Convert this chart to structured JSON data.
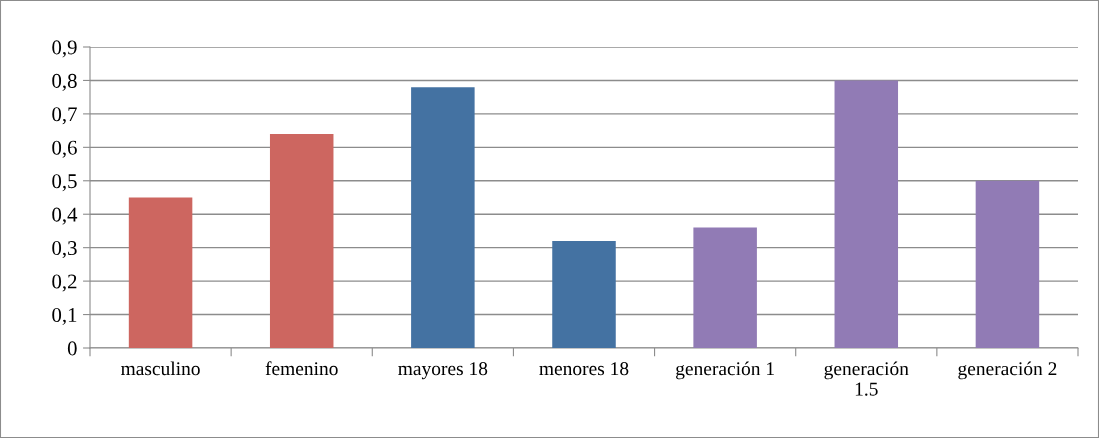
{
  "chart_data": {
    "type": "bar",
    "categories": [
      "masculino",
      "femenino",
      "mayores 18",
      "menores 18",
      "generación 1",
      "generación 1.5",
      "generación 2"
    ],
    "values": [
      0.45,
      0.64,
      0.78,
      0.32,
      0.36,
      0.8,
      0.5
    ],
    "colors": [
      "#cd6660",
      "#cd6660",
      "#4472a2",
      "#4472a2",
      "#917bb5",
      "#917bb5",
      "#917bb5"
    ],
    "ylim": [
      0,
      0.9
    ],
    "yticks": [
      0,
      {
        "value": 0.1,
        "label": "0,1"
      },
      {
        "value": 0.2,
        "label": "0,2"
      },
      {
        "value": 0.3,
        "label": "0,3"
      },
      {
        "value": 0.4,
        "label": "0,4"
      },
      {
        "value": 0.5,
        "label": "0,5"
      },
      {
        "value": 0.6,
        "label": "0,6"
      },
      {
        "value": 0.7,
        "label": "0,7"
      },
      {
        "value": 0.8,
        "label": "0,8"
      },
      {
        "value": 0.9,
        "label": "0,9"
      }
    ],
    "grid": "y"
  }
}
